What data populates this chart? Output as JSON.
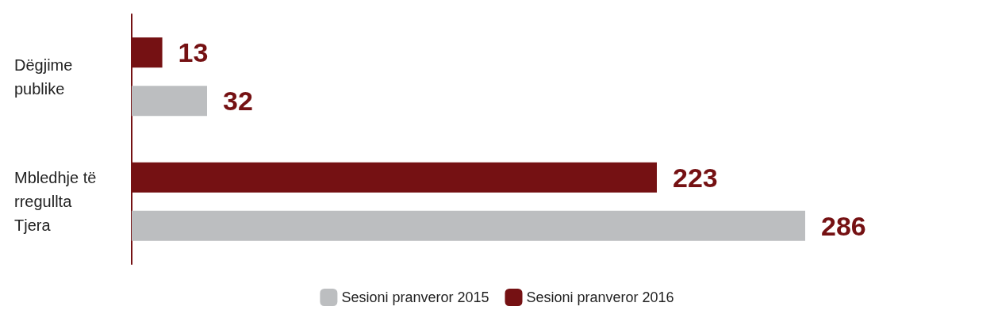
{
  "chart_data": {
    "type": "bar",
    "orientation": "horizontal",
    "categories": [
      "Dëgjime publike",
      "Mbledhje të rregullta Tjera"
    ],
    "series": [
      {
        "name": "Sesioni pranveror 2015",
        "color": "#bcbec0",
        "values": [
          32,
          286
        ]
      },
      {
        "name": "Sesioni pranveror 2016",
        "color": "#751113",
        "values": [
          13,
          223
        ]
      }
    ],
    "data_labels": true,
    "legend": "bottom",
    "grid": false
  }
}
